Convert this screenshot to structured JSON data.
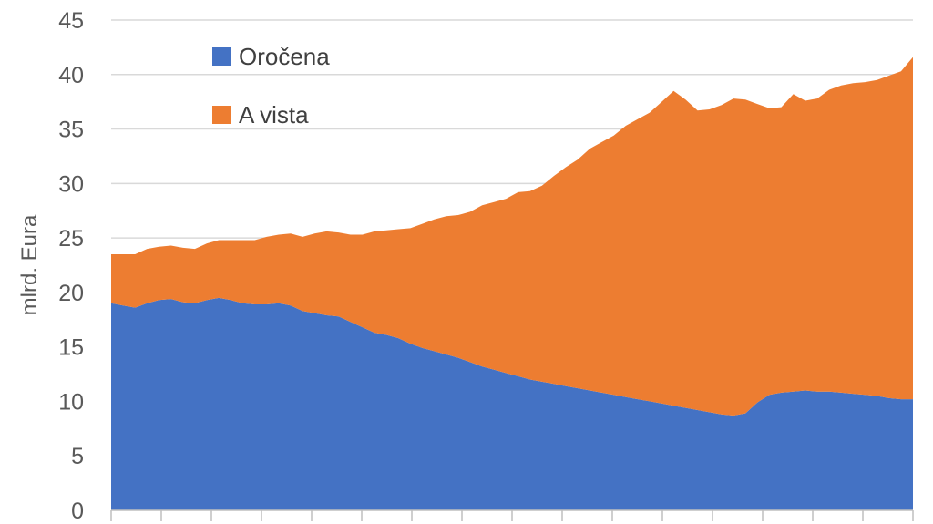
{
  "chart_data": {
    "type": "area",
    "stacked": true,
    "ylabel": "mlrd. Eura",
    "ylim": [
      0,
      45
    ],
    "yticks": [
      0,
      5,
      10,
      15,
      20,
      25,
      30,
      35,
      40,
      45
    ],
    "x_tick_count": 17,
    "grid": "horizontal",
    "legend_position": "top-left",
    "x": [
      0,
      2,
      4,
      6,
      8,
      10,
      12,
      14,
      16,
      18,
      20,
      22,
      24,
      26,
      28,
      30,
      32,
      34,
      36,
      38,
      40,
      42,
      44,
      46,
      48,
      50,
      52,
      54,
      56,
      58,
      60,
      62,
      64,
      66,
      68,
      70,
      72,
      74,
      76,
      78,
      80,
      82,
      84,
      86,
      88,
      90,
      92,
      94,
      96,
      98,
      100,
      102,
      104,
      106,
      108,
      110,
      112,
      114,
      116,
      118,
      120,
      122,
      124,
      126,
      128,
      130,
      132,
      134
    ],
    "series": [
      {
        "name": "Oročena",
        "color": "#4472C4",
        "values": [
          19.0,
          18.8,
          18.6,
          19.0,
          19.3,
          19.4,
          19.1,
          19.0,
          19.3,
          19.5,
          19.3,
          19.0,
          18.9,
          18.9,
          19.0,
          18.8,
          18.3,
          18.1,
          17.9,
          17.8,
          17.3,
          16.8,
          16.3,
          16.1,
          15.8,
          15.3,
          14.9,
          14.6,
          14.3,
          14.0,
          13.6,
          13.2,
          12.9,
          12.6,
          12.3,
          12.0,
          11.8,
          11.6,
          11.4,
          11.2,
          11.0,
          10.8,
          10.6,
          10.4,
          10.2,
          10.0,
          9.8,
          9.6,
          9.4,
          9.2,
          9.0,
          8.8,
          8.7,
          8.9,
          9.9,
          10.6,
          10.8,
          10.9,
          11.0,
          10.9,
          10.9,
          10.8,
          10.7,
          10.6,
          10.5,
          10.3,
          10.2,
          10.2
        ]
      },
      {
        "name": "A vista",
        "color": "#ED7D31",
        "values": [
          4.5,
          4.7,
          4.9,
          5.0,
          4.9,
          4.9,
          5.0,
          5.0,
          5.2,
          5.3,
          5.5,
          5.8,
          5.9,
          6.2,
          6.3,
          6.6,
          6.8,
          7.3,
          7.7,
          7.7,
          8.0,
          8.5,
          9.3,
          9.6,
          10.0,
          10.6,
          11.4,
          12.1,
          12.7,
          13.1,
          13.8,
          14.8,
          15.4,
          16.0,
          16.9,
          17.3,
          18.0,
          19.1,
          20.1,
          21.0,
          22.2,
          23.0,
          23.8,
          24.9,
          25.7,
          26.5,
          27.7,
          28.9,
          28.3,
          27.5,
          27.8,
          28.4,
          29.1,
          28.8,
          27.4,
          26.3,
          26.2,
          27.3,
          26.6,
          26.9,
          27.7,
          28.2,
          28.5,
          28.7,
          29.0,
          29.6,
          30.1,
          31.4
        ]
      }
    ]
  }
}
